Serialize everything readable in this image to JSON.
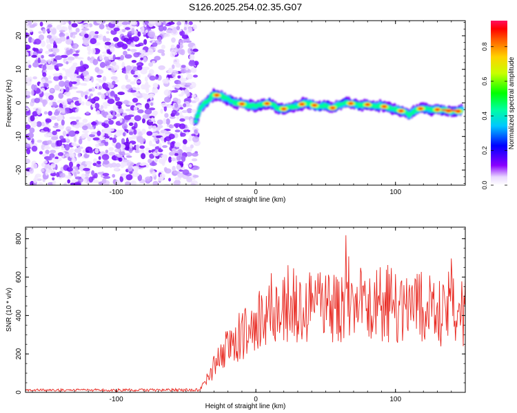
{
  "title": "S126.2025.254.02.35.G07",
  "chart_data": [
    {
      "type": "heatmap",
      "xlabel": "Height of straight line (km)",
      "ylabel": "Frequency (Hz)",
      "xlim": [
        -165,
        150
      ],
      "ylim": [
        -24.5,
        24.5
      ],
      "xticks": [
        -100,
        0,
        100
      ],
      "yticks": [
        -20,
        -10,
        0,
        10,
        20
      ],
      "noise_region_x": [
        -165,
        -42
      ],
      "signal_track": {
        "x": [
          -43,
          -40,
          -35,
          -30,
          -25,
          -20,
          -15,
          -10,
          -5,
          0,
          5,
          10,
          15,
          20,
          25,
          30,
          35,
          40,
          45,
          50,
          55,
          60,
          65,
          70,
          75,
          80,
          85,
          90,
          95,
          100,
          105,
          110,
          115,
          120,
          125,
          130,
          135,
          140,
          145,
          148
        ],
        "y": [
          -5.5,
          -1.5,
          0.5,
          2.5,
          2.0,
          1.0,
          0.0,
          -0.3,
          -0.8,
          -1.0,
          -0.5,
          0.0,
          -1.5,
          -1.8,
          -1.2,
          -1.0,
          0.0,
          -0.5,
          -1.0,
          -0.8,
          -1.5,
          -0.5,
          0.0,
          -0.3,
          -0.8,
          -0.5,
          -1.0,
          -0.8,
          -1.5,
          -2.0,
          -2.5,
          -3.5,
          -2.0,
          -1.5,
          -2.0,
          -2.0,
          -2.2,
          -2.5,
          -2.5,
          -2.0
        ]
      },
      "colorbar": {
        "label": "Normalized spectral amplitude",
        "range": [
          0.0,
          0.95
        ],
        "ticks": [
          0.0,
          0.2,
          0.4,
          0.6,
          0.8
        ]
      }
    },
    {
      "type": "line",
      "xlabel": "Height of straight line (km)",
      "ylabel": "SNR (10 * v/v)",
      "xlim": [
        -165,
        150
      ],
      "ylim": [
        0,
        860
      ],
      "xticks": [
        -100,
        0,
        100
      ],
      "yticks": [
        0,
        200,
        400,
        600,
        800
      ],
      "series": [
        {
          "name": "SNR",
          "color": "#e8261e",
          "envelope_x": [
            -165,
            -40,
            -35,
            -30,
            -25,
            -20,
            -15,
            -10,
            -5,
            0,
            5,
            10,
            20,
            30,
            40,
            50,
            60,
            70,
            80,
            90,
            100,
            110,
            120,
            130,
            140,
            150
          ],
          "envelope_mean": [
            12,
            12,
            60,
            120,
            180,
            230,
            260,
            300,
            330,
            350,
            380,
            400,
            420,
            440,
            450,
            450,
            460,
            460,
            460,
            460,
            450,
            440,
            430,
            440,
            430,
            440
          ],
          "envelope_spread": [
            6,
            8,
            40,
            70,
            90,
            110,
            130,
            150,
            160,
            170,
            170,
            170,
            180,
            180,
            190,
            190,
            200,
            200,
            200,
            210,
            210,
            210,
            210,
            200,
            200,
            200
          ]
        }
      ]
    }
  ]
}
